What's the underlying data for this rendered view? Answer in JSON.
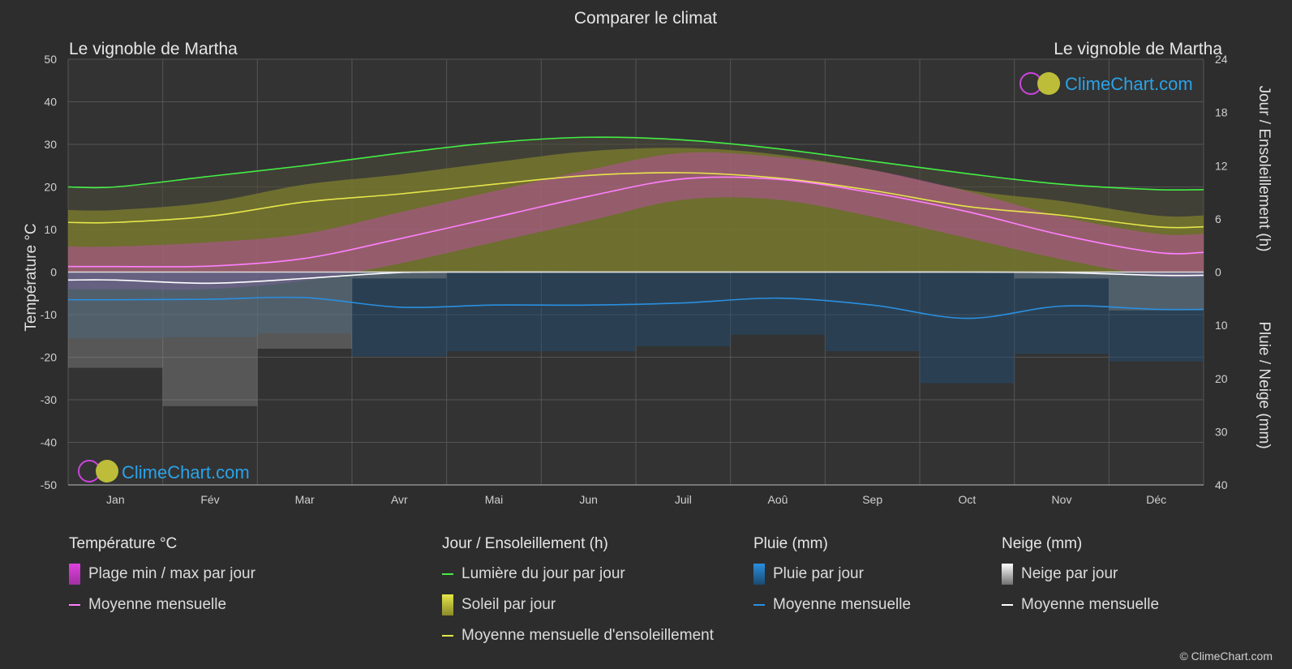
{
  "title": "Comparer le climat",
  "location_left": "Le vignoble de Martha",
  "location_right": "Le vignoble de Martha",
  "axis_left_label": "Température °C",
  "axis_right_top_label": "Jour / Ensoleillement (h)",
  "axis_right_bottom_label": "Pluie / Neige (mm)",
  "logo_text": "ClimeChart.com",
  "copyright": "© ClimeChart.com",
  "colors": {
    "background": "#2d2d2d",
    "daylight": "#44ee44",
    "sunshine": "#e6e64a",
    "temp_mean": "#ff7fff",
    "temp_range": "#e040e0",
    "rain": "#2a8fe0",
    "snow": "#ffffff",
    "logo": "#2aa3e8"
  },
  "legend": {
    "temperature": {
      "header": "Température °C",
      "range_label": "Plage min / max par jour",
      "mean_label": "Moyenne mensuelle"
    },
    "sun": {
      "header": "Jour / Ensoleillement (h)",
      "daylight_label": "Lumière du jour par jour",
      "sunshine_label": "Soleil par jour",
      "sunshine_mean_label": "Moyenne mensuelle d'ensoleillement"
    },
    "rain": {
      "header": "Pluie (mm)",
      "daily_label": "Pluie par jour",
      "mean_label": "Moyenne mensuelle"
    },
    "snow": {
      "header": "Neige (mm)",
      "daily_label": "Neige par jour",
      "mean_label": "Moyenne mensuelle"
    }
  },
  "chart_data": {
    "type": "line",
    "categories": [
      "Jan",
      "Fév",
      "Mar",
      "Avr",
      "Mai",
      "Jun",
      "Juil",
      "Aoû",
      "Sep",
      "Oct",
      "Nov",
      "Déc"
    ],
    "temp_axis": {
      "min": -50,
      "max": 50,
      "ticks": [
        50,
        40,
        30,
        20,
        10,
        0,
        -10,
        -20,
        -30,
        -40,
        -50
      ]
    },
    "sun_axis": {
      "min": 0,
      "max": 24,
      "ticks": [
        24,
        18,
        12,
        6,
        0
      ]
    },
    "precip_axis": {
      "min": 0,
      "max": 40,
      "ticks": [
        0,
        10,
        20,
        30,
        40
      ]
    },
    "series": [
      {
        "name": "Lumière du jour par jour",
        "axis": "hours",
        "values": [
          9.6,
          10.8,
          12.0,
          13.4,
          14.6,
          15.2,
          14.9,
          13.9,
          12.5,
          11.1,
          9.9,
          9.3
        ]
      },
      {
        "name": "Moyenne mensuelle d'ensoleillement",
        "axis": "hours",
        "values": [
          5.6,
          6.3,
          7.9,
          8.8,
          9.9,
          10.9,
          11.2,
          10.6,
          9.2,
          7.4,
          6.4,
          5.1
        ]
      },
      {
        "name": "Température moyenne mensuelle",
        "axis": "temperature",
        "values": [
          1.3,
          1.4,
          3.2,
          7.8,
          12.8,
          17.8,
          21.9,
          21.8,
          18.6,
          14.2,
          8.7,
          4.6
        ]
      },
      {
        "name": "Pluie moyenne mensuelle",
        "axis": "precipitation",
        "values": [
          5.2,
          5.1,
          4.8,
          6.6,
          6.2,
          6.2,
          5.8,
          4.9,
          6.2,
          8.7,
          6.4,
          7.0
        ]
      },
      {
        "name": "Neige moyenne mensuelle",
        "axis": "precipitation",
        "values": [
          1.5,
          2.1,
          1.2,
          0.1,
          0.0,
          0.0,
          0.0,
          0.0,
          0.0,
          0.0,
          0.1,
          0.6
        ]
      }
    ],
    "temp_range_min": [
      -4,
      -4,
      -2,
      2,
      7,
      12,
      17,
      17,
      13,
      8,
      3,
      -1
    ],
    "temp_range_max": [
      6,
      7,
      9,
      14,
      19,
      24,
      28,
      27,
      24,
      19,
      13,
      9
    ],
    "grid": true
  }
}
